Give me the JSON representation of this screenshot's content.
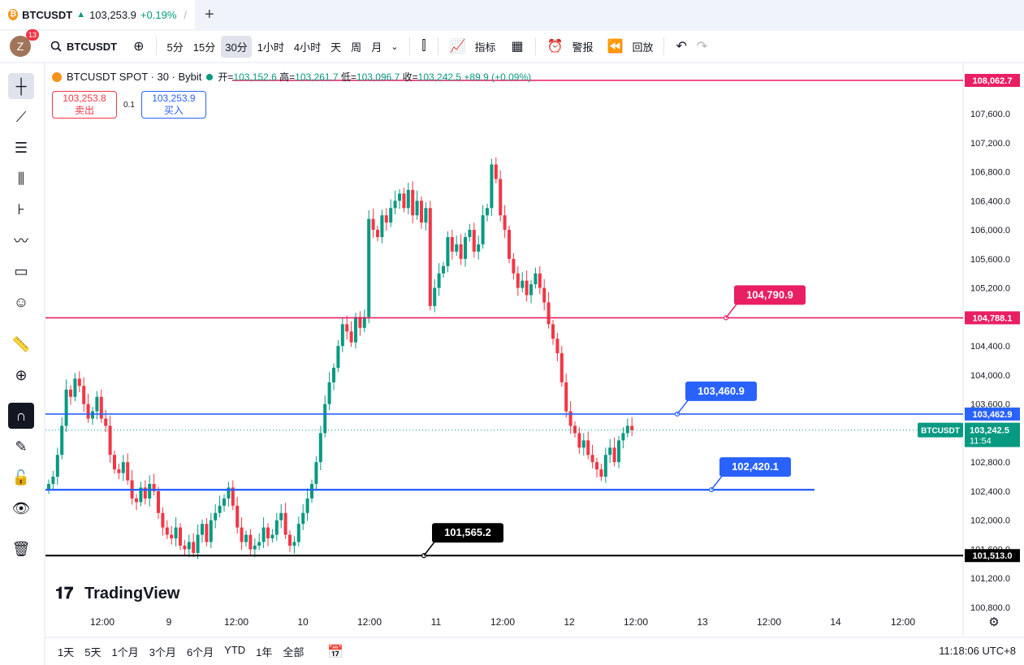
{
  "tab": {
    "symbol": "BTCUSDT",
    "price": "103,253.9",
    "change": "+0.19%",
    "coin_icon": "bitcoin-icon"
  },
  "toolbar": {
    "avatar_letter": "Z",
    "notif_count": "13",
    "symbol": "BTCUSDT",
    "intervals": [
      "5分",
      "15分",
      "30分",
      "1小时",
      "4小时",
      "天",
      "周",
      "月"
    ],
    "active_interval": "30分",
    "indicators_label": "指标",
    "alert_label": "警报",
    "replay_label": "回放"
  },
  "legend": {
    "title": "BTCUSDT SPOT · 30 · Bybit",
    "open_label": "开=",
    "open": "103,152.6",
    "high_label": "高=",
    "high": "103,261.7",
    "low_label": "低=",
    "low": "103,096.7",
    "close_label": "收=",
    "close": "103,242.5",
    "change": "+89.9 (+0.09%)"
  },
  "bidask": {
    "sell_price": "103,253.8",
    "sell_label": "卖出",
    "spread": "0.1",
    "buy_price": "103,253.9",
    "buy_label": "买入"
  },
  "chart_data": {
    "type": "candlestick",
    "y_ticks": [
      "107,600.0",
      "107,200.0",
      "106,800.0",
      "106,400.0",
      "106,000.0",
      "105,600.0",
      "105,200.0",
      "104,800.0",
      "104,400.0",
      "104,000.0",
      "103,600.0",
      "102,800.0",
      "102,400.0",
      "102,000.0",
      "101,600.0",
      "101,200.0",
      "100,800.0"
    ],
    "x_ticks": [
      "12:00",
      "9",
      "12:00",
      "10",
      "12:00",
      "11",
      "12:00",
      "12",
      "12:00",
      "13",
      "12:00",
      "14",
      "12:00"
    ],
    "horizontal_lines": [
      {
        "price": 108062.7,
        "label": "108,062.7",
        "color": "#e91e63"
      },
      {
        "price": 104788.1,
        "label": "104,788.1",
        "color": "#e91e63",
        "annotation": "104,790.9"
      },
      {
        "price": 103462.9,
        "label": "103,462.9",
        "color": "#2962ff",
        "annotation": "103,460.9"
      },
      {
        "price": 102420.1,
        "label": "",
        "color": "#2962ff",
        "annotation": "102,420.1"
      },
      {
        "price": 101513.0,
        "label": "101,513.0",
        "color": "#000000",
        "annotation": "101,565.2"
      }
    ],
    "current": {
      "symbol": "BTCUSDT",
      "price": "103,242.5",
      "countdown": "11:54"
    },
    "closes": [
      102500,
      102600,
      102900,
      103300,
      103800,
      103700,
      103950,
      103850,
      103600,
      103400,
      103500,
      103700,
      103400,
      103300,
      102900,
      102700,
      102650,
      102800,
      102550,
      102300,
      102250,
      102450,
      102300,
      102500,
      102400,
      102100,
      101900,
      101800,
      101750,
      101900,
      101650,
      101600,
      101700,
      101550,
      101800,
      101950,
      101700,
      102000,
      102100,
      102200,
      102300,
      102450,
      102200,
      101900,
      101700,
      101800,
      101600,
      101650,
      101700,
      101900,
      101750,
      101800,
      102000,
      102100,
      101800,
      101650,
      101700,
      101950,
      102100,
      102300,
      102500,
      102800,
      103200,
      103600,
      103900,
      104100,
      104400,
      104700,
      104600,
      104450,
      104800,
      104650,
      104800,
      106150,
      106000,
      105900,
      106200,
      106100,
      106300,
      106400,
      106500,
      106300,
      106550,
      106200,
      106400,
      106100,
      106300,
      104950,
      105200,
      105400,
      105500,
      105900,
      105700,
      105800,
      105600,
      105900,
      106000,
      105700,
      105800,
      106200,
      106300,
      106900,
      106700,
      106200,
      106000,
      105600,
      105400,
      105200,
      105300,
      105100,
      105250,
      105400,
      105200,
      105000,
      104700,
      104500,
      104300,
      103900,
      103500,
      103300,
      103200,
      103000,
      103100,
      102900,
      102800,
      102700,
      102600,
      102900,
      103000,
      102800,
      103100,
      103200,
      103300,
      103242
    ]
  },
  "watermark": "TradingView",
  "bottombar": {
    "ranges": [
      "1天",
      "5天",
      "1个月",
      "3个月",
      "6个月",
      "YTD",
      "1年",
      "全部"
    ],
    "clock": "11:18:06 UTC+8"
  }
}
